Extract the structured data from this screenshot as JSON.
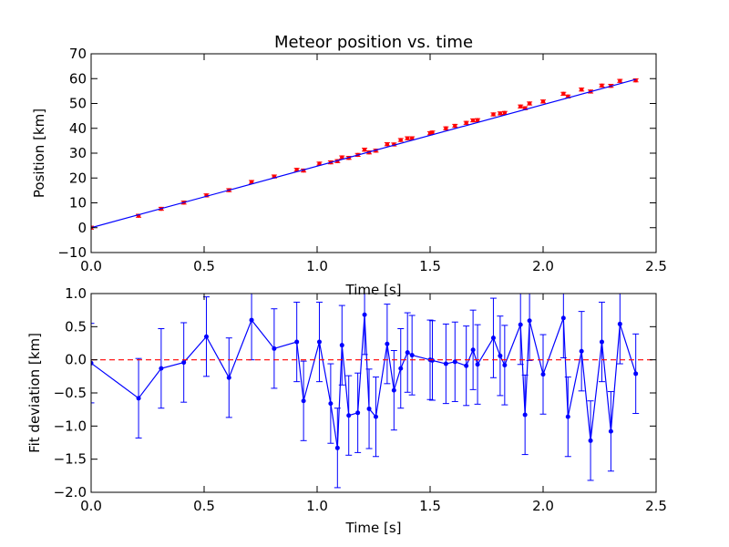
{
  "chart_data": [
    {
      "type": "scatter",
      "title": "Meteor position vs. time",
      "xlabel": "Time [s]",
      "ylabel": "Position [km]",
      "xlim": [
        0,
        2.5
      ],
      "ylim": [
        -10,
        70
      ],
      "xticks": [
        "0.0",
        "0.5",
        "1.0",
        "1.5",
        "2.0",
        "2.5"
      ],
      "yticks": [
        "−10",
        "0",
        "10",
        "20",
        "30",
        "40",
        "50",
        "60",
        "70"
      ],
      "grid": false,
      "colors": {
        "points": "#ff0000",
        "fit": "#0000ff"
      },
      "series": [
        {
          "kind": "errorbar-points",
          "x": [
            0.0,
            0.21,
            0.31,
            0.41,
            0.51,
            0.61,
            0.71,
            0.81,
            0.91,
            0.94,
            1.01,
            1.06,
            1.09,
            1.11,
            1.14,
            1.18,
            1.21,
            1.23,
            1.26,
            1.31,
            1.34,
            1.37,
            1.4,
            1.42,
            1.5,
            1.51,
            1.57,
            1.61,
            1.66,
            1.69,
            1.71,
            1.78,
            1.81,
            1.83,
            1.9,
            1.92,
            1.94,
            2.0,
            2.09,
            2.11,
            2.17,
            2.21,
            2.26,
            2.3,
            2.34,
            2.41
          ],
          "y": [
            0.0,
            4.8,
            7.6,
            10.1,
            13.0,
            15.1,
            18.4,
            20.6,
            23.3,
            23.0,
            25.8,
            26.3,
            26.8,
            28.3,
            28.1,
            29.3,
            31.4,
            30.3,
            31.0,
            33.6,
            33.5,
            35.3,
            36.0,
            36.0,
            38.0,
            38.3,
            40.0,
            41.0,
            42.2,
            43.2,
            43.3,
            45.6,
            46.0,
            46.2,
            48.8,
            48.1,
            50.0,
            50.8,
            53.9,
            52.8,
            55.6,
            54.8,
            57.2,
            57.1,
            59.1,
            59.3
          ]
        },
        {
          "kind": "fit-line",
          "x": [
            0.0,
            2.41
          ],
          "y": [
            0.0,
            59.7
          ]
        }
      ],
      "yerr": 0.6
    },
    {
      "type": "line",
      "xlabel": "Time [s]",
      "ylabel": "Fit deviation [km]",
      "xlim": [
        0,
        2.5
      ],
      "ylim": [
        -2.0,
        1.0
      ],
      "xticks": [
        "0.0",
        "0.5",
        "1.0",
        "1.5",
        "2.0",
        "2.5"
      ],
      "yticks": [
        "−2.0",
        "−1.5",
        "−1.0",
        "−0.5",
        "0.0",
        "0.5",
        "1.0"
      ],
      "grid": false,
      "colors": {
        "series": "#0000ff",
        "zero": "#ff0000"
      },
      "series": [
        {
          "kind": "errorbar-line",
          "x": [
            0.0,
            0.21,
            0.31,
            0.41,
            0.51,
            0.61,
            0.71,
            0.81,
            0.91,
            0.94,
            1.01,
            1.06,
            1.09,
            1.11,
            1.14,
            1.18,
            1.21,
            1.23,
            1.26,
            1.31,
            1.34,
            1.37,
            1.4,
            1.42,
            1.5,
            1.51,
            1.57,
            1.61,
            1.66,
            1.69,
            1.71,
            1.78,
            1.81,
            1.83,
            1.9,
            1.92,
            1.94,
            2.0,
            2.09,
            2.11,
            2.17,
            2.21,
            2.26,
            2.3,
            2.34,
            2.41
          ],
          "y": [
            -0.05,
            -0.58,
            -0.13,
            -0.04,
            0.35,
            -0.27,
            0.6,
            0.17,
            0.27,
            -0.62,
            0.27,
            -0.66,
            -1.33,
            0.22,
            -0.84,
            -0.8,
            0.68,
            -0.74,
            -0.86,
            0.24,
            -0.46,
            -0.13,
            0.11,
            0.07,
            0.0,
            -0.01,
            -0.06,
            -0.03,
            -0.09,
            0.15,
            -0.07,
            0.33,
            0.06,
            -0.08,
            0.53,
            -0.83,
            0.59,
            -0.22,
            0.63,
            -0.86,
            0.13,
            -1.22,
            0.27,
            -1.08,
            0.54,
            -0.21
          ]
        },
        {
          "kind": "zero-line",
          "y": 0
        }
      ],
      "yerr": 0.6
    }
  ]
}
